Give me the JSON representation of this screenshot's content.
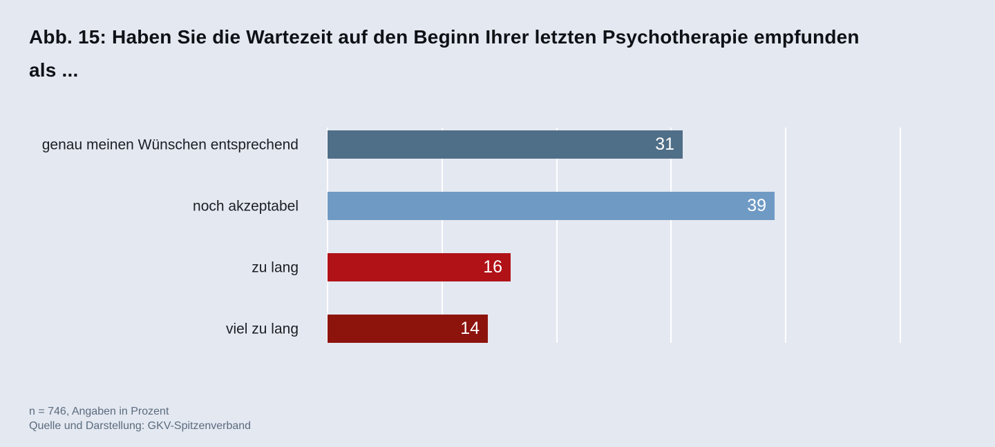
{
  "title": "Abb. 15: Haben Sie die Wartezeit auf den Beginn Ihrer letzten Psychotherapie empfunden als ...",
  "chart_data": {
    "type": "bar",
    "orientation": "horizontal",
    "categories": [
      "genau meinen Wünschen entsprechend",
      "noch akzeptabel",
      "zu lang",
      "viel zu lang"
    ],
    "values": [
      31,
      39,
      16,
      14
    ],
    "bar_colors": [
      "#4f6e87",
      "#6f9ac4",
      "#b11217",
      "#8d130d"
    ],
    "value_label_color": "#ffffff",
    "gridline_values": [
      0,
      10,
      20,
      30,
      40,
      50
    ],
    "gridline_color": "#ffffff",
    "xlim": [
      0,
      56
    ],
    "legend": "none",
    "grid": "vertical-white-lines"
  },
  "footer": {
    "line1": "n = 746, Angaben in Prozent",
    "line2": "Quelle und Darstellung: GKV-Spitzenverband"
  },
  "colors": {
    "background": "#e4e8f1",
    "title_text": "#0e1216",
    "category_label_text": "#1b1f24",
    "footer_text": "#5a6b7d"
  }
}
